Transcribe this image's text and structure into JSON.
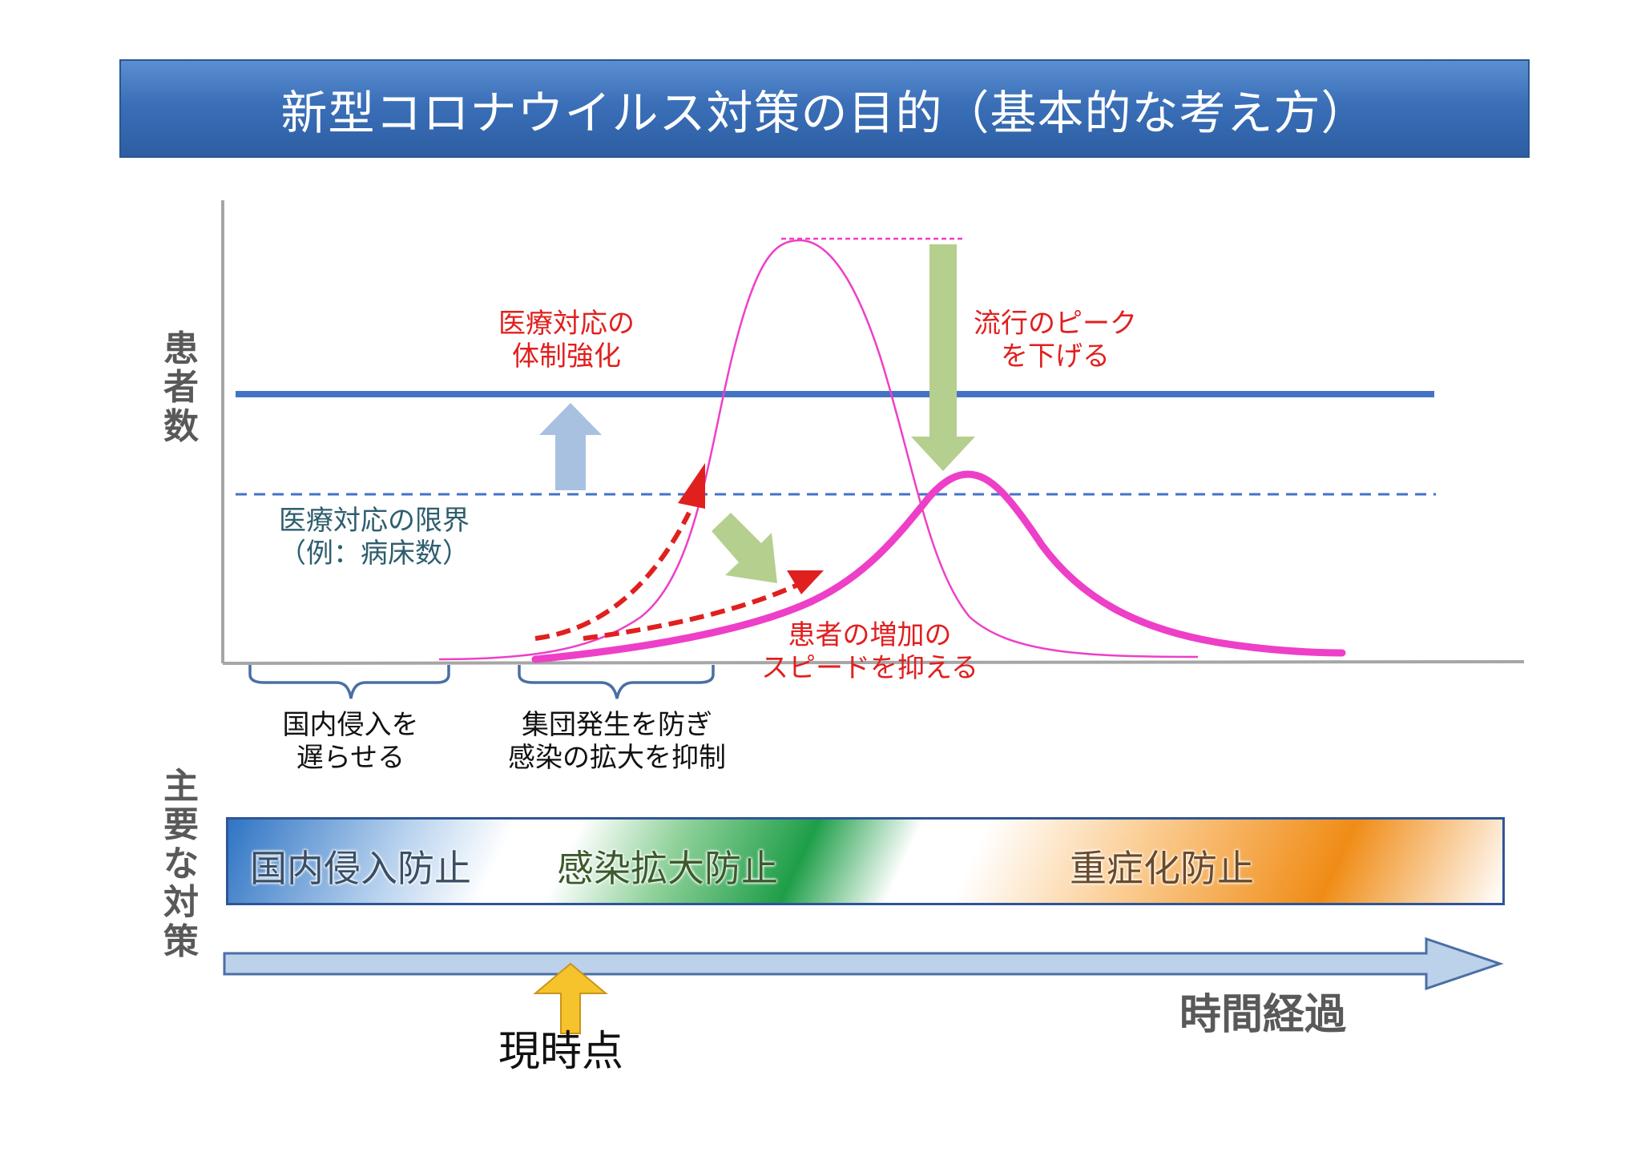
{
  "title": "新型コロナウイルス対策の目的（基本的な考え方）",
  "y_axis_label": "患\n者\n数",
  "measures_axis_label": "主\n要\nな\n対\n策",
  "medical_system_label": "医療対応の\n体制強化",
  "medical_limit_label": "医療対応の限界\n（例：病床数）",
  "lower_peak_label": "流行のピーク\nを下げる",
  "slow_growth_label": "患者の増加の\nスピードを抑える",
  "phase_labels": [
    "国内侵入を\n遅らせる",
    "集団発生を防ぎ\n感染の拡大を抑制"
  ],
  "measures": [
    "国内侵入防止",
    "感染拡大防止",
    "重症化防止"
  ],
  "now_label": "現時点",
  "time_label": "時間経過",
  "colors": {
    "title_bg": "#3a6fb8",
    "capacity_line": "#4472c4",
    "curve": "#ee3fc8",
    "arrow_red": "#e0201f",
    "arrow_green": "#b5cf8e",
    "arrow_blue": "#a8c1e0",
    "arrow_yellow": "#f6c32c",
    "time_arrow": "#bcd1ea"
  }
}
